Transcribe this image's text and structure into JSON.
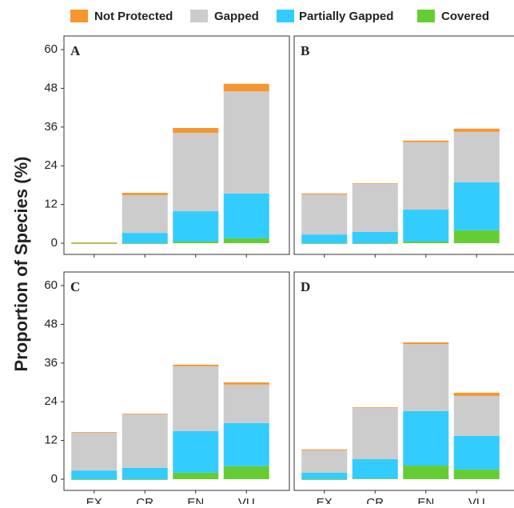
{
  "chart_data": [
    {
      "type": "bar",
      "stacked": true,
      "label": "A",
      "ylabel": "Proportion of Species (%)",
      "ylim": [
        0,
        60
      ],
      "yticks": [
        0,
        12,
        24,
        36,
        48,
        60
      ],
      "series": [
        {
          "name": "Covered",
          "color": "#66cc33",
          "values": [
            0,
            0,
            0.5,
            1.5
          ]
        },
        {
          "name": "Partially Gapped",
          "color": "#33ccff",
          "values": [
            0.2,
            3.2,
            9.4,
            13.9
          ]
        },
        {
          "name": "Gapped",
          "color": "#cccccc",
          "values": [
            0,
            11.7,
            24.3,
            31.7
          ]
        },
        {
          "name": "Not Protected",
          "color": "#f7962f",
          "values": [
            0,
            0.7,
            1.5,
            2.3
          ]
        }
      ]
    },
    {
      "type": "bar",
      "stacked": true,
      "label": "B",
      "ylim": [
        0,
        60
      ],
      "series": [
        {
          "color": "#66cc33",
          "values": [
            0,
            0,
            0.5,
            4.0
          ]
        },
        {
          "color": "#33ccff",
          "values": [
            2.7,
            3.5,
            9.9,
            14.9
          ]
        },
        {
          "color": "#cccccc",
          "values": [
            12.4,
            14.9,
            20.9,
            15.6
          ]
        },
        {
          "color": "#f7962f",
          "values": [
            0.3,
            0.2,
            0.5,
            1.0
          ]
        }
      ]
    },
    {
      "type": "bar",
      "stacked": true,
      "label": "C",
      "ylim": [
        0,
        60
      ],
      "yticks": [
        0,
        12,
        24,
        36,
        48,
        60
      ],
      "categories": [
        "EX",
        "CR",
        "EN",
        "VU"
      ],
      "series": [
        {
          "color": "#66cc33",
          "values": [
            0,
            0,
            2.0,
            4.0
          ]
        },
        {
          "color": "#33ccff",
          "values": [
            2.7,
            3.5,
            12.9,
            13.4
          ]
        },
        {
          "color": "#cccccc",
          "values": [
            11.7,
            16.6,
            20.1,
            11.9
          ]
        },
        {
          "color": "#f7962f",
          "values": [
            0.2,
            0.2,
            0.5,
            0.7
          ]
        }
      ]
    },
    {
      "type": "bar",
      "stacked": true,
      "label": "D",
      "ylim": [
        0,
        60
      ],
      "categories": [
        "EX",
        "CR",
        "EN",
        "VU"
      ],
      "series": [
        {
          "color": "#66cc33",
          "values": [
            0,
            0.2,
            4.2,
            3.0
          ]
        },
        {
          "color": "#33ccff",
          "values": [
            2.0,
            6.0,
            16.9,
            10.4
          ]
        },
        {
          "color": "#cccccc",
          "values": [
            6.9,
            15.9,
            20.8,
            12.4
          ]
        },
        {
          "color": "#f7962f",
          "values": [
            0.3,
            0.2,
            0.5,
            1.0
          ]
        }
      ]
    }
  ]
}
